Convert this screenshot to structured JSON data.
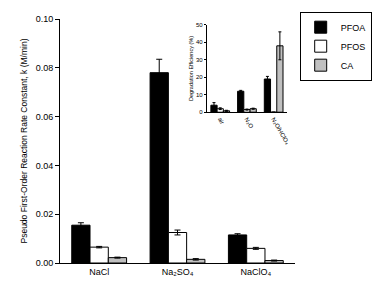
{
  "chart_data": [
    {
      "type": "bar",
      "ylabel": "Pseudo First-Order Reaction Rate Constant, k (M/min)",
      "categories": [
        "NaCl",
        "Na₂SO₄",
        "NaClO₄"
      ],
      "series": [
        {
          "name": "PFOA",
          "color": "#000000",
          "values": [
            0.0155,
            0.078,
            0.0115
          ],
          "errors": [
            0.001,
            0.0055,
            0.0005
          ]
        },
        {
          "name": "PFOS",
          "color": "#ffffff",
          "values": [
            0.0065,
            0.0125,
            0.006
          ],
          "errors": [
            0.0003,
            0.001,
            0.0004
          ]
        },
        {
          "name": "CA",
          "color": "#c0c0c0",
          "values": [
            0.0022,
            0.0015,
            0.001
          ],
          "errors": [
            0.0002,
            0.0003,
            0.0002
          ]
        }
      ],
      "ylim": [
        0,
        0.1
      ],
      "yticks": [
        {
          "value": 0,
          "label": "0.00"
        },
        {
          "value": 0.02,
          "label": "0.02"
        },
        {
          "value": 0.04,
          "label": "0.04"
        },
        {
          "value": 0.06,
          "label": "0.06"
        },
        {
          "value": 0.08,
          "label": "0.08"
        },
        {
          "value": 0.1,
          "label": "0.10"
        }
      ],
      "legend": "right"
    },
    {
      "type": "bar",
      "ylabel": "Degradation Efficiency (%)",
      "categories": [
        "air",
        "N₂O",
        "N₂O/HClO₄"
      ],
      "series": [
        {
          "name": "PFOA",
          "color": "#000000",
          "values": [
            4,
            12,
            19
          ],
          "errors": [
            1.5,
            0.5,
            1.5
          ]
        },
        {
          "name": "PFOS",
          "color": "#ffffff",
          "values": [
            2,
            1.5,
            0
          ],
          "errors": [
            0.5,
            0.3,
            0
          ]
        },
        {
          "name": "CA",
          "color": "#c0c0c0",
          "values": [
            0.8,
            2,
            38
          ],
          "errors": [
            0.3,
            0.3,
            8
          ]
        }
      ],
      "ylim": [
        0,
        50
      ],
      "yticks": [
        0,
        10,
        20,
        30,
        40,
        50
      ]
    }
  ]
}
